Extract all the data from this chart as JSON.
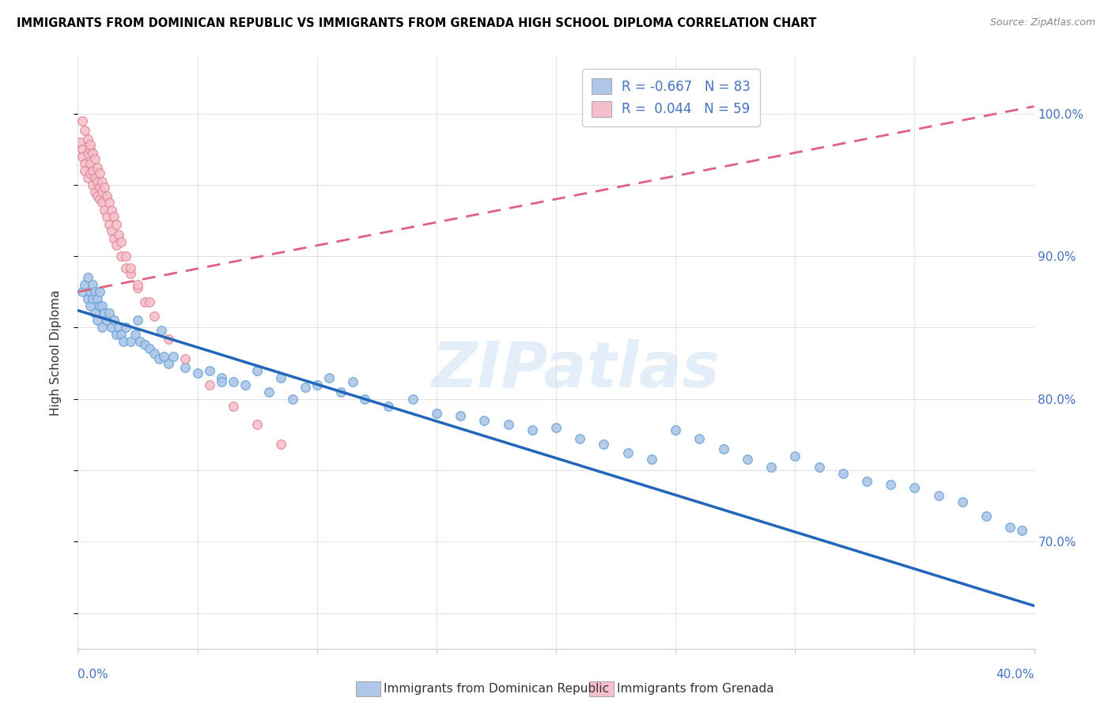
{
  "title": "IMMIGRANTS FROM DOMINICAN REPUBLIC VS IMMIGRANTS FROM GRENADA HIGH SCHOOL DIPLOMA CORRELATION CHART",
  "source": "Source: ZipAtlas.com",
  "ylabel": "High School Diploma",
  "watermark": "ZIPatlas",
  "blue_color": "#aec6e8",
  "blue_edge_color": "#5a9fd4",
  "blue_line_color": "#2266bb",
  "pink_color": "#f5c0cc",
  "pink_edge_color": "#e08090",
  "pink_line_color": "#e06080",
  "xmin": 0.0,
  "xmax": 0.4,
  "ymin": 0.625,
  "ymax": 1.04,
  "blue_r": "-0.667",
  "blue_n": "83",
  "pink_r": "0.044",
  "pink_n": "59",
  "blue_trend_x": [
    0.0,
    0.4
  ],
  "blue_trend_y": [
    0.862,
    0.655
  ],
  "pink_trend_x": [
    0.0,
    0.4
  ],
  "pink_trend_y": [
    0.875,
    1.005
  ],
  "blue_scatter_x": [
    0.002,
    0.003,
    0.004,
    0.004,
    0.005,
    0.005,
    0.006,
    0.006,
    0.007,
    0.007,
    0.008,
    0.008,
    0.009,
    0.009,
    0.01,
    0.01,
    0.011,
    0.012,
    0.013,
    0.014,
    0.015,
    0.016,
    0.017,
    0.018,
    0.019,
    0.02,
    0.022,
    0.024,
    0.026,
    0.028,
    0.03,
    0.032,
    0.034,
    0.036,
    0.038,
    0.04,
    0.045,
    0.05,
    0.055,
    0.06,
    0.065,
    0.07,
    0.08,
    0.09,
    0.1,
    0.11,
    0.12,
    0.13,
    0.14,
    0.15,
    0.16,
    0.17,
    0.18,
    0.19,
    0.2,
    0.21,
    0.22,
    0.23,
    0.24,
    0.25,
    0.26,
    0.27,
    0.28,
    0.29,
    0.3,
    0.31,
    0.32,
    0.33,
    0.34,
    0.35,
    0.36,
    0.37,
    0.38,
    0.39,
    0.395,
    0.025,
    0.035,
    0.06,
    0.075,
    0.085,
    0.095,
    0.105,
    0.115
  ],
  "blue_scatter_y": [
    0.875,
    0.88,
    0.87,
    0.885,
    0.865,
    0.875,
    0.87,
    0.88,
    0.86,
    0.875,
    0.855,
    0.87,
    0.865,
    0.875,
    0.85,
    0.865,
    0.86,
    0.855,
    0.86,
    0.85,
    0.855,
    0.845,
    0.85,
    0.845,
    0.84,
    0.85,
    0.84,
    0.845,
    0.84,
    0.838,
    0.835,
    0.832,
    0.828,
    0.83,
    0.825,
    0.83,
    0.822,
    0.818,
    0.82,
    0.815,
    0.812,
    0.81,
    0.805,
    0.8,
    0.81,
    0.805,
    0.8,
    0.795,
    0.8,
    0.79,
    0.788,
    0.785,
    0.782,
    0.778,
    0.78,
    0.772,
    0.768,
    0.762,
    0.758,
    0.778,
    0.772,
    0.765,
    0.758,
    0.752,
    0.76,
    0.752,
    0.748,
    0.742,
    0.74,
    0.738,
    0.732,
    0.728,
    0.718,
    0.71,
    0.708,
    0.855,
    0.848,
    0.812,
    0.82,
    0.815,
    0.808,
    0.815,
    0.812
  ],
  "pink_scatter_x": [
    0.001,
    0.002,
    0.002,
    0.003,
    0.003,
    0.004,
    0.004,
    0.005,
    0.005,
    0.005,
    0.006,
    0.006,
    0.007,
    0.007,
    0.008,
    0.008,
    0.009,
    0.009,
    0.01,
    0.01,
    0.011,
    0.012,
    0.013,
    0.014,
    0.015,
    0.016,
    0.018,
    0.02,
    0.022,
    0.025,
    0.028,
    0.032,
    0.038,
    0.045,
    0.055,
    0.065,
    0.075,
    0.085,
    0.002,
    0.003,
    0.004,
    0.005,
    0.006,
    0.007,
    0.008,
    0.009,
    0.01,
    0.011,
    0.012,
    0.013,
    0.014,
    0.015,
    0.016,
    0.017,
    0.018,
    0.02,
    0.022,
    0.025,
    0.03
  ],
  "pink_scatter_y": [
    0.98,
    0.975,
    0.97,
    0.965,
    0.96,
    0.972,
    0.955,
    0.975,
    0.965,
    0.958,
    0.95,
    0.96,
    0.945,
    0.955,
    0.942,
    0.952,
    0.94,
    0.948,
    0.938,
    0.945,
    0.932,
    0.928,
    0.922,
    0.918,
    0.912,
    0.908,
    0.9,
    0.892,
    0.888,
    0.878,
    0.868,
    0.858,
    0.842,
    0.828,
    0.81,
    0.795,
    0.782,
    0.768,
    0.995,
    0.988,
    0.982,
    0.978,
    0.972,
    0.968,
    0.962,
    0.958,
    0.952,
    0.948,
    0.942,
    0.938,
    0.932,
    0.928,
    0.922,
    0.915,
    0.91,
    0.9,
    0.892,
    0.88,
    0.868
  ]
}
